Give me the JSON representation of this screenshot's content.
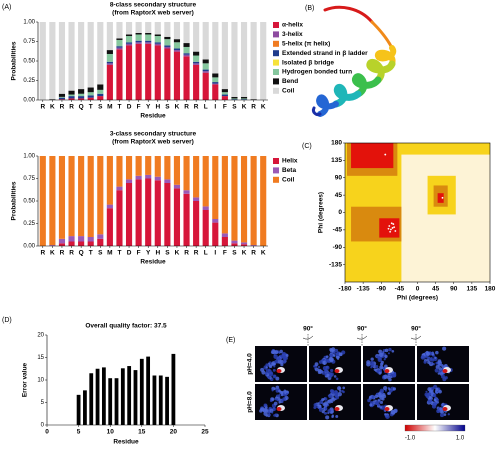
{
  "panel_labels": [
    "(A)",
    "(B)",
    "(C)",
    "(D)",
    "(E)"
  ],
  "chart_data": [
    {
      "type": "stacked_bar",
      "title": "8-class secondary structure",
      "subtitle": "(from RaptorX web server)",
      "x_label": "Residue",
      "y_label": "Probabilities",
      "categories": [
        "R",
        "K",
        "R",
        "R",
        "Q",
        "T",
        "S",
        "M",
        "T",
        "D",
        "F",
        "Y",
        "H",
        "S",
        "K",
        "R",
        "R",
        "L",
        "I",
        "F",
        "S",
        "K",
        "R",
        "K"
      ],
      "ylim": [
        0,
        1
      ],
      "yticks": [
        {
          "value": 0,
          "label": "0.00"
        },
        {
          "value": 0.25,
          "label": "0.25"
        },
        {
          "value": 0.5,
          "label": "0.50"
        },
        {
          "value": 0.75,
          "label": "0.75"
        },
        {
          "value": 1,
          "label": "1.00"
        }
      ],
      "series": [
        {
          "name": "α-helix",
          "color": "#d6163a",
          "values": [
            0,
            0,
            0.01,
            0.02,
            0.02,
            0.03,
            0.05,
            0.45,
            0.65,
            0.7,
            0.72,
            0.72,
            0.7,
            0.66,
            0.62,
            0.56,
            0.45,
            0.35,
            0.2,
            0.05,
            0,
            0,
            0,
            0
          ]
        },
        {
          "name": "3-helix",
          "color": "#8e4ba0",
          "values": [
            0,
            0,
            0,
            0,
            0,
            0,
            0,
            0.02,
            0.02,
            0.02,
            0.02,
            0.02,
            0.02,
            0.02,
            0.02,
            0.02,
            0.02,
            0.02,
            0.01,
            0,
            0,
            0,
            0,
            0
          ]
        },
        {
          "name": "5-helix (π helix)",
          "color": "#f07b21",
          "values": [
            0,
            0,
            0,
            0,
            0,
            0,
            0,
            0,
            0,
            0,
            0,
            0,
            0,
            0,
            0,
            0,
            0,
            0,
            0,
            0,
            0,
            0,
            0,
            0
          ]
        },
        {
          "name": "Extended strand in β ladder",
          "color": "#1f3c8c",
          "values": [
            0,
            0,
            0.02,
            0.03,
            0.03,
            0.03,
            0.03,
            0.02,
            0.02,
            0.02,
            0.02,
            0.02,
            0.02,
            0.02,
            0.02,
            0.02,
            0.02,
            0.02,
            0.02,
            0.02,
            0.01,
            0.01,
            0,
            0
          ]
        },
        {
          "name": "Isolated β bridge",
          "color": "#f6e23a",
          "values": [
            0,
            0,
            0,
            0,
            0,
            0,
            0,
            0,
            0,
            0,
            0,
            0,
            0,
            0,
            0,
            0,
            0,
            0,
            0,
            0,
            0,
            0,
            0,
            0
          ]
        },
        {
          "name": "Hydrogen bonded turn",
          "color": "#86c79e",
          "values": [
            0,
            0,
            0.01,
            0.02,
            0.03,
            0.04,
            0.05,
            0.1,
            0.08,
            0.08,
            0.08,
            0.08,
            0.08,
            0.08,
            0.08,
            0.08,
            0.08,
            0.08,
            0.06,
            0.03,
            0.01,
            0.01,
            0,
            0
          ]
        },
        {
          "name": "Bend",
          "color": "#111111",
          "values": [
            0,
            0.01,
            0.04,
            0.05,
            0.06,
            0.06,
            0.07,
            0.05,
            0.02,
            0.02,
            0.02,
            0.02,
            0.02,
            0.03,
            0.04,
            0.05,
            0.05,
            0.05,
            0.05,
            0.04,
            0.02,
            0.02,
            0.01,
            0
          ]
        },
        {
          "name": "Coil",
          "color": "#d9d9d9",
          "values": [
            1,
            0.99,
            0.92,
            0.88,
            0.86,
            0.84,
            0.8,
            0.36,
            0.21,
            0.16,
            0.14,
            0.14,
            0.16,
            0.19,
            0.22,
            0.27,
            0.38,
            0.48,
            0.66,
            0.86,
            0.96,
            0.96,
            0.99,
            1
          ]
        }
      ]
    },
    {
      "type": "stacked_bar",
      "title": "3-class secondary structure",
      "subtitle": "(from RaptorX web server)",
      "x_label": "Residue",
      "y_label": "Probabilities",
      "categories": [
        "R",
        "K",
        "R",
        "R",
        "Q",
        "T",
        "S",
        "M",
        "T",
        "D",
        "F",
        "Y",
        "H",
        "S",
        "K",
        "R",
        "R",
        "L",
        "I",
        "F",
        "S",
        "K",
        "R",
        "K"
      ],
      "ylim": [
        0,
        1
      ],
      "yticks": [
        {
          "value": 0,
          "label": "0.00"
        },
        {
          "value": 0.25,
          "label": "0.25"
        },
        {
          "value": 0.5,
          "label": "0.50"
        },
        {
          "value": 0.75,
          "label": "0.75"
        },
        {
          "value": 1,
          "label": "1.00"
        }
      ],
      "series": [
        {
          "name": "Helix",
          "color": "#d6163a",
          "values": [
            0,
            0,
            0.03,
            0.05,
            0.05,
            0.05,
            0.08,
            0.42,
            0.62,
            0.7,
            0.74,
            0.75,
            0.73,
            0.7,
            0.64,
            0.58,
            0.5,
            0.4,
            0.26,
            0.1,
            0.03,
            0.02,
            0,
            0
          ]
        },
        {
          "name": "Beta",
          "color": "#9b59b6",
          "values": [
            0,
            0.01,
            0.05,
            0.06,
            0.06,
            0.05,
            0.05,
            0.04,
            0.04,
            0.04,
            0.04,
            0.04,
            0.04,
            0.04,
            0.04,
            0.04,
            0.04,
            0.04,
            0.04,
            0.04,
            0.03,
            0.02,
            0.01,
            0
          ]
        },
        {
          "name": "Coil",
          "color": "#f07b21",
          "values": [
            1,
            0.99,
            0.92,
            0.89,
            0.89,
            0.9,
            0.87,
            0.54,
            0.34,
            0.26,
            0.22,
            0.21,
            0.23,
            0.26,
            0.32,
            0.38,
            0.46,
            0.56,
            0.7,
            0.86,
            0.94,
            0.96,
            0.99,
            1
          ]
        }
      ]
    },
    {
      "type": "scatter",
      "x_label": "Phi (degrees)",
      "y_label": "Phi (degrees)",
      "xlim": [
        -180,
        180
      ],
      "ylim": [
        -180,
        180
      ],
      "xticks": [
        -180,
        -135,
        -90,
        -45,
        0,
        45,
        90,
        135,
        180
      ],
      "yticks": [
        -135,
        -90,
        -45,
        0,
        45,
        90,
        135,
        180
      ],
      "color": "#ffffff",
      "x": [
        -62,
        -66,
        -58,
        -70,
        -64,
        -55,
        -72,
        -60,
        -68,
        62,
        -80
      ],
      "y": [
        -40,
        -44,
        -38,
        -35,
        -28,
        -48,
        -42,
        -30,
        -50,
        38,
        150
      ]
    },
    {
      "type": "bar",
      "title": "Overall quality factor: 37.5",
      "x_label": "Residue",
      "y_label": "Error value",
      "x": [
        5,
        6,
        7,
        8,
        9,
        10,
        11,
        12,
        13,
        14,
        15,
        16,
        17,
        18,
        19,
        20
      ],
      "values": [
        6.7,
        7.7,
        11.5,
        12.5,
        12.8,
        10.4,
        10.4,
        12.6,
        13.1,
        12.2,
        14.7,
        15.2,
        11,
        11,
        10.7,
        15.8
      ],
      "color": "#000000",
      "xlim": [
        0,
        25
      ],
      "ylim": [
        0,
        20
      ],
      "xticks": [
        0,
        5,
        10,
        15,
        20,
        25
      ],
      "yticks": [
        0,
        5,
        10,
        15,
        20
      ]
    }
  ],
  "panel_e": {
    "rotations": [
      "90°",
      "90°",
      "90°"
    ],
    "rows": [
      "pH=4.0",
      "pH=8.0"
    ],
    "colorbar": [
      "-1.0",
      "1.0"
    ]
  }
}
